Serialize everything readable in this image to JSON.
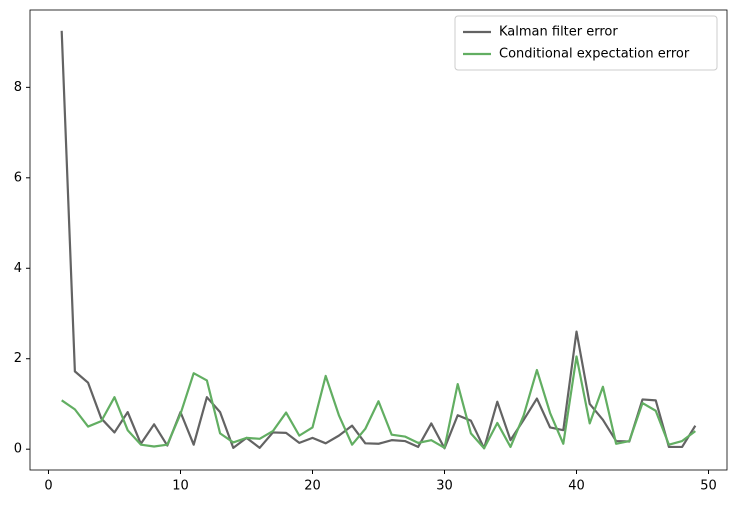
{
  "chart_data": {
    "type": "line",
    "x": [
      1,
      2,
      3,
      4,
      5,
      6,
      7,
      8,
      9,
      10,
      11,
      12,
      13,
      14,
      15,
      16,
      17,
      18,
      19,
      20,
      21,
      22,
      23,
      24,
      25,
      26,
      27,
      28,
      29,
      30,
      31,
      32,
      33,
      34,
      35,
      36,
      37,
      38,
      39,
      40,
      41,
      42,
      43,
      44,
      45,
      46,
      47,
      48,
      49
    ],
    "series": [
      {
        "name": "Kalman filter error",
        "color": "#636363",
        "values": [
          9.25,
          1.72,
          1.47,
          0.68,
          0.37,
          0.82,
          0.12,
          0.55,
          0.08,
          0.82,
          0.1,
          1.15,
          0.82,
          0.03,
          0.25,
          0.03,
          0.37,
          0.36,
          0.14,
          0.25,
          0.13,
          0.3,
          0.52,
          0.13,
          0.12,
          0.2,
          0.18,
          0.05,
          0.57,
          0.02,
          0.75,
          0.63,
          0.02,
          1.05,
          0.2,
          0.65,
          1.12,
          0.48,
          0.42,
          2.6,
          1.0,
          0.65,
          0.18,
          0.17,
          1.1,
          1.08,
          0.05,
          0.05,
          0.52
        ]
      },
      {
        "name": "Conditional expectation error",
        "color": "#62ae62",
        "values": [
          1.08,
          0.88,
          0.5,
          0.62,
          1.15,
          0.42,
          0.1,
          0.06,
          0.1,
          0.78,
          1.68,
          1.52,
          0.35,
          0.15,
          0.25,
          0.23,
          0.4,
          0.81,
          0.3,
          0.48,
          1.62,
          0.75,
          0.1,
          0.45,
          1.06,
          0.32,
          0.28,
          0.14,
          0.2,
          0.03,
          1.44,
          0.35,
          0.02,
          0.58,
          0.05,
          0.75,
          1.75,
          0.8,
          0.12,
          2.05,
          0.57,
          1.38,
          0.12,
          0.18,
          1.02,
          0.85,
          0.1,
          0.18,
          0.4
        ]
      }
    ],
    "xlim": [
      -1.4,
      51.4
    ],
    "xticks": [
      0,
      10,
      20,
      30,
      40,
      50
    ],
    "ylim": [
      -0.46,
      9.71
    ],
    "yticks": [
      0,
      2,
      4,
      6,
      8
    ],
    "legend": "upper right"
  }
}
